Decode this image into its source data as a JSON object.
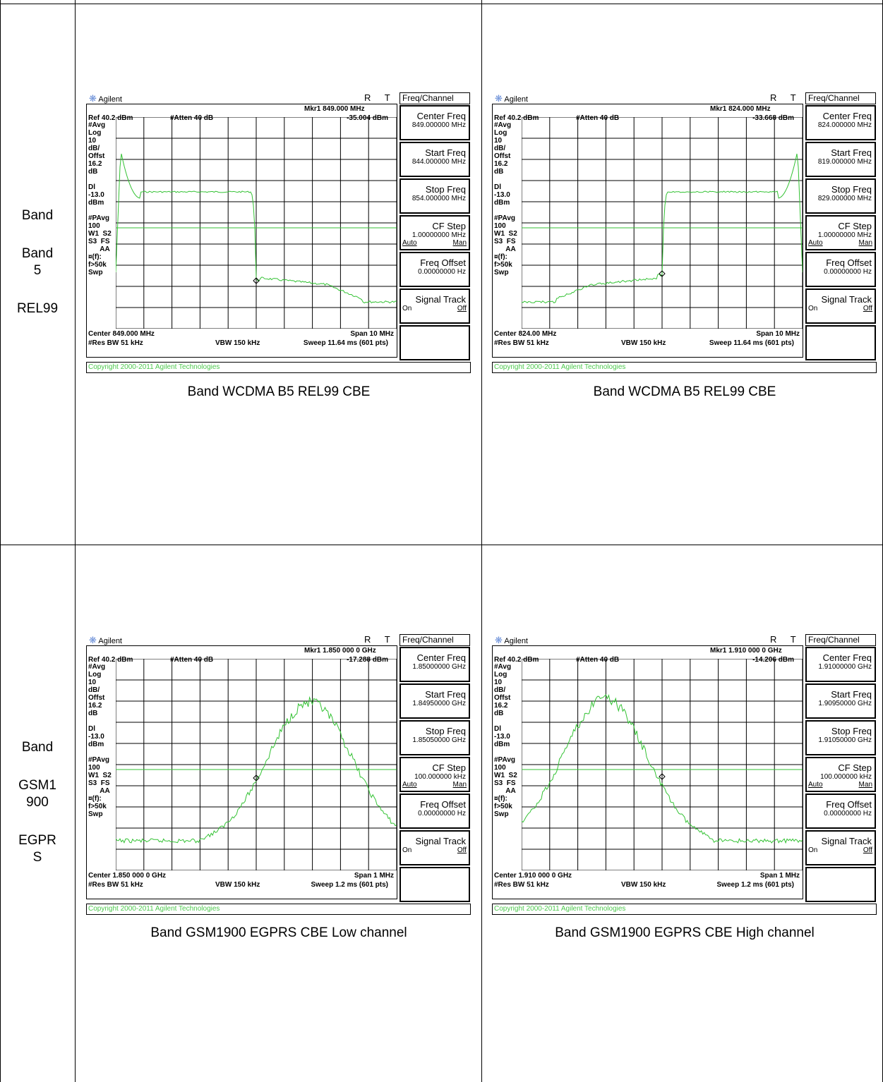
{
  "rows": [
    {
      "label_lines": [
        "Band",
        "Band\n5",
        "REL99"
      ],
      "panels": [
        {
          "caption": "Band WCDMA B5 REL99 CBE",
          "brand": "Agilent",
          "rt": "R T",
          "ref": "Ref 40.2 dBm",
          "atten": "#Atten 40 dB",
          "mkr": "Mkr1  849.000 MHz",
          "mkr_val": "-35.004 dBm",
          "left_labels": "#Avg\nLog\n10\ndB/\nOffst\n16.2\ndB\n\nDl\n-13.0\ndBm\n\n#PAvg\n100\nW1  S2\nS3  FS\n      AA\n¤(f):\nf>50k\nSwp",
          "center": "Center 849.000 MHz",
          "span": "Span 10 MHz",
          "rbw": "#Res BW 51 kHz",
          "vbw": "VBW 150 kHz",
          "sweep": "Sweep 11.64 ms (601 pts)",
          "copyright": "Copyright 2000-2011 Agilent Technologies",
          "menu_title": "Freq/Channel",
          "sk_center": "Center Freq",
          "sk_center_val": "849.000000 MHz",
          "sk_start": "Start Freq",
          "sk_start_val": "844.000000 MHz",
          "sk_stop": "Stop Freq",
          "sk_stop_val": "854.000000 MHz",
          "sk_cfstep": "CF Step",
          "sk_cfstep_val": "1.00000000 MHz",
          "sk_auto": "Auto",
          "sk_man": "Man",
          "sk_offset": "Freq Offset",
          "sk_offset_val": "0.00000000  Hz",
          "sk_track": "Signal Track",
          "sk_on": "On",
          "sk_off": "Off",
          "trace": "wcdma_low"
        },
        {
          "caption": "Band WCDMA B5 REL99 CBE",
          "brand": "Agilent",
          "rt": "R T",
          "ref": "Ref 40.2 dBm",
          "atten": "#Atten 40 dB",
          "mkr": "Mkr1  824.000 MHz",
          "mkr_val": "-33.668 dBm",
          "left_labels": "#Avg\nLog\n10\ndB/\nOffst\n16.2\ndB\n\nDl\n-13.0\ndBm\n\n#PAvg\n100\nW1  S2\nS3  FS\n      AA\n¤(f):\nf>50k\nSwp",
          "center": "Center 824.00 MHz",
          "span": "Span 10 MHz",
          "rbw": "#Res BW 51 kHz",
          "vbw": "VBW 150 kHz",
          "sweep": "Sweep 11.64 ms (601 pts)",
          "copyright": "Copyright 2000-2011 Agilent Technologies",
          "menu_title": "Freq/Channel",
          "sk_center": "Center Freq",
          "sk_center_val": "824.000000 MHz",
          "sk_start": "Start Freq",
          "sk_start_val": "819.000000 MHz",
          "sk_stop": "Stop Freq",
          "sk_stop_val": "829.000000 MHz",
          "sk_cfstep": "CF Step",
          "sk_cfstep_val": "1.00000000 MHz",
          "sk_auto": "Auto",
          "sk_man": "Man",
          "sk_offset": "Freq Offset",
          "sk_offset_val": "0.00000000  Hz",
          "sk_track": "Signal Track",
          "sk_on": "On",
          "sk_off": "Off",
          "trace": "wcdma_high"
        }
      ]
    },
    {
      "label_lines": [
        "Band",
        "GSM1\n900",
        "EGPR\nS"
      ],
      "panels": [
        {
          "caption": "Band GSM1900 EGPRS CBE Low channel",
          "brand": "Agilent",
          "rt": "R T",
          "ref": "Ref 40.2 dBm",
          "atten": "#Atten 40 dB",
          "mkr": "Mkr1  1.850 000 0 GHz",
          "mkr_val": "-17.288 dBm",
          "left_labels": "#Avg\nLog\n10\ndB/\nOffst\n16.2\ndB\n\nDl\n-13.0\ndBm\n\n#PAvg\n100\nW1  S2\nS3  FS\n      AA\n¤(f):\nf>50k\nSwp",
          "center": "Center 1.850 000 0 GHz",
          "span": "Span 1 MHz",
          "rbw": "#Res BW 51 kHz",
          "vbw": "VBW 150 kHz",
          "sweep": "Sweep 1.2 ms (601 pts)",
          "copyright": "Copyright 2000-2011 Agilent Technologies",
          "menu_title": "Freq/Channel",
          "sk_center": "Center Freq",
          "sk_center_val": "1.85000000 GHz",
          "sk_start": "Start Freq",
          "sk_start_val": "1.84950000 GHz",
          "sk_stop": "Stop Freq",
          "sk_stop_val": "1.85050000 GHz",
          "sk_cfstep": "CF Step",
          "sk_cfstep_val": "100.000000 kHz",
          "sk_auto": "Auto",
          "sk_man": "Man",
          "sk_offset": "Freq Offset",
          "sk_offset_val": "0.00000000  Hz",
          "sk_track": "Signal Track",
          "sk_on": "On",
          "sk_off": "Off",
          "trace": "gsm_low"
        },
        {
          "caption": "Band GSM1900 EGPRS CBE High channel",
          "brand": "Agilent",
          "rt": "R T",
          "ref": "Ref 40.2 dBm",
          "atten": "#Atten 40 dB",
          "mkr": "Mkr1  1.910 000 0 GHz",
          "mkr_val": "-14.206 dBm",
          "left_labels": "#Avg\nLog\n10\ndB/\nOffst\n16.2\ndB\n\nDl\n-13.0\ndBm\n\n#PAvg\n100\nW1  S2\nS3  FS\n      AA\n¤(f):\nf>50k\nSwp",
          "center": "Center 1.910 000 0 GHz",
          "span": "Span 1 MHz",
          "rbw": "#Res BW 51 kHz",
          "vbw": "VBW 150 kHz",
          "sweep": "Sweep 1.2 ms (601 pts)",
          "copyright": "Copyright 2000-2011 Agilent Technologies",
          "menu_title": "Freq/Channel",
          "sk_center": "Center Freq",
          "sk_center_val": "1.91000000 GHz",
          "sk_start": "Start Freq",
          "sk_start_val": "1.90950000 GHz",
          "sk_stop": "Stop Freq",
          "sk_stop_val": "1.91050000 GHz",
          "sk_cfstep": "CF Step",
          "sk_cfstep_val": "100.000000 kHz",
          "sk_auto": "Auto",
          "sk_man": "Man",
          "sk_offset": "Freq Offset",
          "sk_offset_val": "0.00000000  Hz",
          "sk_track": "Signal Track",
          "sk_on": "On",
          "sk_off": "Off",
          "trace": "gsm_high"
        }
      ]
    }
  ],
  "colors": {
    "trace": "#34c234",
    "grid": "#000000",
    "copyright": "#4ec94e",
    "logo": "#6a8fd8"
  }
}
